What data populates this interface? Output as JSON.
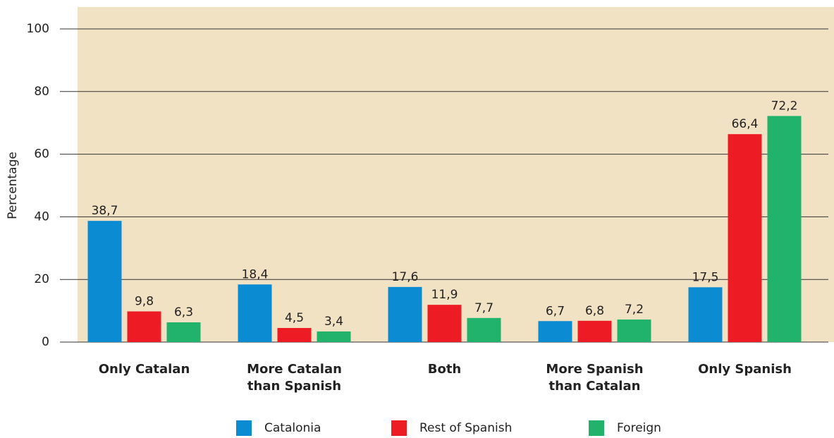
{
  "chart_data": {
    "type": "bar",
    "y_label": "Percentage",
    "categories": [
      "Only Catalan",
      "More Catalan than Spanish",
      "Both",
      "More Spanish than Catalan",
      "Only Spanish"
    ],
    "series": [
      {
        "name": "Catalonia",
        "color": "#0b8bd2",
        "values": [
          38.7,
          18.4,
          17.6,
          6.7,
          17.5
        ],
        "value_labels": [
          "38,7",
          "18,4",
          "17,6",
          "6,7",
          "17,5"
        ]
      },
      {
        "name": "Rest of Spanish",
        "color": "#ed1c24",
        "values": [
          9.8,
          4.5,
          11.9,
          6.8,
          66.4
        ],
        "value_labels": [
          "9,8",
          "4,5",
          "11,9",
          "6,8",
          "66,4"
        ]
      },
      {
        "name": "Foreign",
        "color": "#21b36b",
        "values": [
          6.3,
          3.4,
          7.7,
          7.2,
          72.2
        ],
        "value_labels": [
          "6,3",
          "3,4",
          "7,7",
          "7,2",
          "72,2"
        ]
      }
    ],
    "ylim": [
      0,
      100
    ],
    "yticks": [
      0,
      20,
      40,
      60,
      80,
      100
    ],
    "grid": true,
    "background": "#f2e2c4",
    "legend": "bottom"
  }
}
